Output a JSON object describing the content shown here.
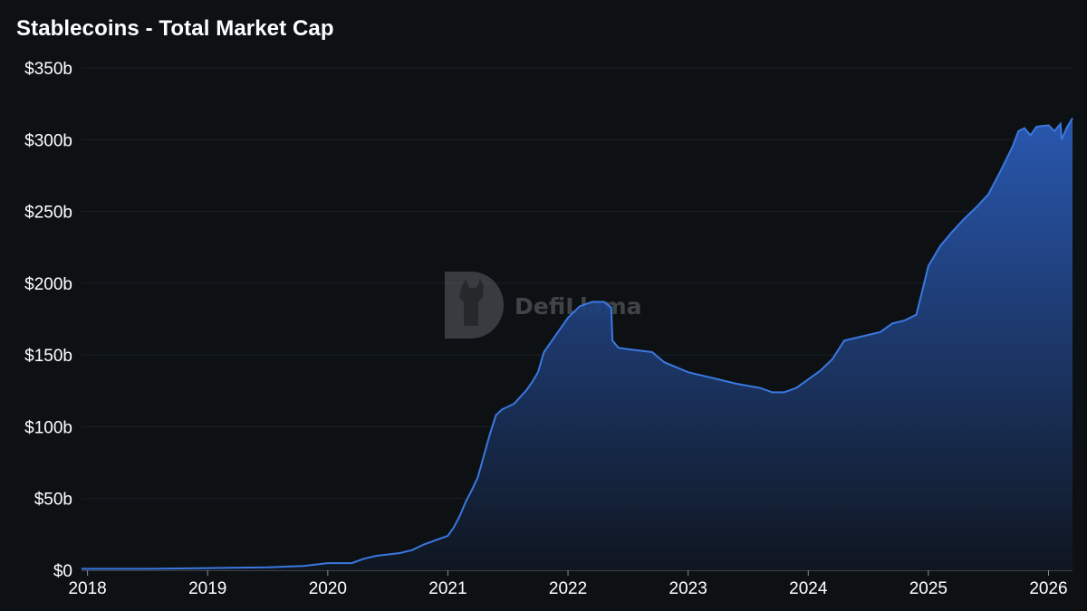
{
  "title": "Stablecoins - Total Market Cap",
  "watermark": {
    "text": "DefiLlama"
  },
  "colors": {
    "background": "#0d1114",
    "line": "#3a78e0",
    "fill_top": "#2c5fc0",
    "grid": "#1b2024",
    "text": "#ffffff"
  },
  "chart_data": {
    "type": "area",
    "title": "Stablecoins - Total Market Cap",
    "xlabel": "",
    "ylabel": "",
    "ylim": [
      0,
      350
    ],
    "xlim": [
      2017.95,
      2026.2
    ],
    "y_ticks": [
      0,
      50,
      100,
      150,
      200,
      250,
      300,
      350
    ],
    "y_tick_labels": [
      "$0",
      "$50b",
      "$100b",
      "$150b",
      "$200b",
      "$250b",
      "$300b",
      "$350b"
    ],
    "x_ticks": [
      2018,
      2019,
      2020,
      2021,
      2022,
      2023,
      2024,
      2025,
      2026
    ],
    "x_tick_labels": [
      "2018",
      "2019",
      "2020",
      "2021",
      "2022",
      "2023",
      "2024",
      "2025",
      "2026"
    ],
    "grid": true,
    "series": [
      {
        "name": "",
        "x": [
          2017.95,
          2018.5,
          2019.0,
          2019.5,
          2019.8,
          2020.0,
          2020.2,
          2020.3,
          2020.4,
          2020.6,
          2020.7,
          2020.8,
          2020.9,
          2021.0,
          2021.05,
          2021.1,
          2021.15,
          2021.2,
          2021.25,
          2021.3,
          2021.35,
          2021.4,
          2021.45,
          2021.55,
          2021.65,
          2021.7,
          2021.75,
          2021.8,
          2021.9,
          2022.0,
          2022.1,
          2022.2,
          2022.3,
          2022.36,
          2022.37,
          2022.42,
          2022.5,
          2022.7,
          2022.8,
          2023.0,
          2023.2,
          2023.4,
          2023.6,
          2023.7,
          2023.8,
          2023.9,
          2024.0,
          2024.1,
          2024.2,
          2024.3,
          2024.4,
          2024.6,
          2024.7,
          2024.8,
          2024.9,
          2025.0,
          2025.1,
          2025.2,
          2025.3,
          2025.4,
          2025.5,
          2025.6,
          2025.7,
          2025.75,
          2025.8,
          2025.85,
          2025.9,
          2026.0,
          2026.05,
          2026.1,
          2026.11,
          2026.15,
          2026.2
        ],
        "values": [
          1,
          1,
          1.5,
          2,
          3,
          5,
          5,
          8,
          10,
          12,
          14,
          18,
          21,
          24,
          30,
          38,
          48,
          56,
          65,
          80,
          95,
          108,
          112,
          116,
          125,
          131,
          138,
          152,
          164,
          176,
          184,
          187,
          187,
          183,
          160,
          155,
          154,
          152,
          145,
          138,
          134,
          130,
          127,
          124,
          124,
          127,
          133,
          139,
          147,
          160,
          162,
          166,
          172,
          174,
          178,
          212,
          226,
          236,
          245,
          253,
          262,
          278,
          295,
          306,
          308,
          303,
          309,
          310,
          306,
          311,
          300,
          308,
          315
        ]
      }
    ]
  }
}
